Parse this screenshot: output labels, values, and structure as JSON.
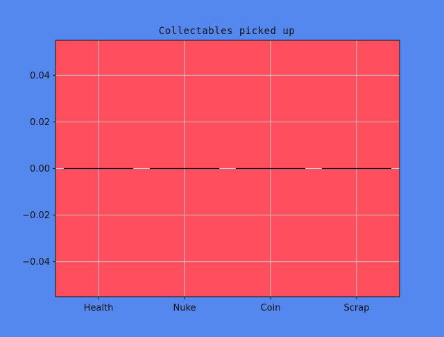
{
  "chart_data": {
    "type": "bar",
    "title": "Collectables picked up",
    "xlabel": "",
    "ylabel": "",
    "categories": [
      "Health",
      "Nuke",
      "Coin",
      "Scrap"
    ],
    "values": [
      0,
      0,
      0,
      0
    ],
    "ylim": [
      -0.055,
      0.055
    ],
    "yticks": [
      -0.04,
      -0.02,
      0.0,
      0.02,
      0.04
    ],
    "ytick_labels": [
      "−0.04",
      "−0.02",
      "0.00",
      "0.02",
      "0.04"
    ],
    "grid": true,
    "colors": {
      "figure_background": "#5588ee",
      "plot_background": "#ff4f5e",
      "bar": "#000000",
      "grid": "#cfcfcf",
      "axis": "#111111"
    }
  }
}
